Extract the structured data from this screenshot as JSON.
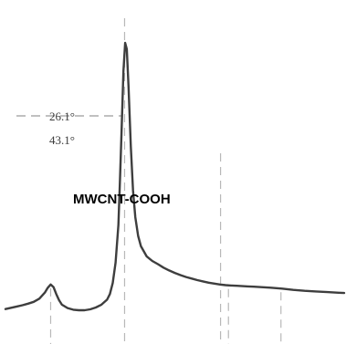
{
  "chart_data": {
    "type": "line",
    "title": "",
    "xlabel": "",
    "ylabel": "",
    "xlim": [
      5,
      65
    ],
    "ylim": [
      0,
      100
    ],
    "grid": false,
    "series": [
      {
        "name": "MWCNT-COOH",
        "color": "#3e3e3e",
        "x": [
          5.0,
          6.0,
          7.0,
          8.0,
          9.0,
          10.0,
          11.0,
          12.0,
          12.5,
          13.0,
          13.5,
          14.0,
          14.5,
          15.0,
          16.0,
          17.0,
          18.0,
          19.0,
          20.0,
          21.0,
          22.0,
          23.0,
          23.5,
          24.0,
          24.5,
          25.0,
          25.3,
          25.6,
          25.9,
          26.2,
          26.5,
          26.8,
          27.2,
          27.6,
          28.0,
          28.5,
          29.0,
          30.0,
          31.0,
          32.0,
          33.0,
          34.0,
          35.0,
          36.0,
          37.0,
          38.0,
          39.0,
          40.0,
          41.0,
          42.0,
          43.0,
          44.0,
          45.0,
          46.0,
          47.0,
          48.0,
          49.0,
          50.0,
          52.0,
          54.0,
          56.0,
          58.0,
          60.0,
          62.0,
          64.0,
          65.0
        ],
        "y": [
          6.2,
          6.6,
          7.0,
          7.4,
          7.9,
          8.5,
          9.5,
          11.5,
          13.0,
          14.0,
          13.2,
          11.0,
          9.0,
          7.6,
          6.5,
          6.0,
          5.8,
          5.8,
          6.1,
          6.7,
          7.6,
          9.2,
          11.0,
          14.5,
          21.0,
          33.0,
          48.0,
          65.0,
          82.0,
          91.0,
          89.0,
          77.0,
          58.0,
          44.0,
          35.5,
          29.5,
          26.2,
          23.0,
          21.5,
          20.5,
          19.4,
          18.5,
          17.7,
          17.0,
          16.4,
          15.9,
          15.4,
          15.0,
          14.6,
          14.3,
          14.0,
          13.8,
          13.7,
          13.6,
          13.5,
          13.4,
          13.3,
          13.2,
          13.0,
          12.7,
          12.3,
          12.0,
          11.8,
          11.6,
          11.4,
          11.3
        ]
      }
    ],
    "annotations": [
      {
        "text": "26.1°",
        "x": 26.1
      },
      {
        "text": "43.1°",
        "x": 43.1
      }
    ],
    "reference_lines_x": [
      13.0,
      26.1,
      43.1,
      44.5,
      53.8
    ]
  }
}
